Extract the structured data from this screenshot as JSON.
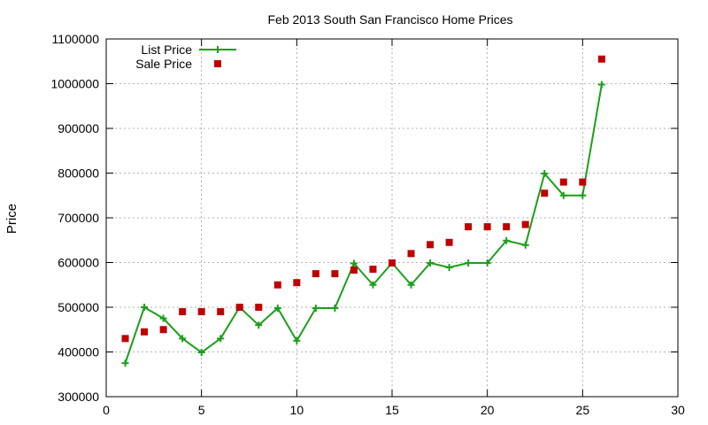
{
  "chart_data": {
    "type": "line",
    "title": "Feb 2013 South San Francisco Home Prices",
    "xlabel": "",
    "ylabel": "Price",
    "xlim": [
      0,
      30
    ],
    "ylim": [
      300000,
      1100000
    ],
    "x_ticks": [
      0,
      5,
      10,
      15,
      20,
      25,
      30
    ],
    "y_ticks": [
      300000,
      400000,
      500000,
      600000,
      700000,
      800000,
      900000,
      1000000,
      1100000
    ],
    "grid": true,
    "legend_position": "top-left",
    "x": [
      1,
      2,
      3,
      4,
      5,
      6,
      7,
      8,
      9,
      10,
      11,
      12,
      13,
      14,
      15,
      16,
      17,
      18,
      19,
      20,
      21,
      22,
      23,
      24,
      25,
      26
    ],
    "series": [
      {
        "name": "List Price",
        "style": "line-plus",
        "color": "#1aa01a",
        "values": [
          375000,
          500000,
          475000,
          430000,
          399000,
          430000,
          500000,
          460000,
          498000,
          425000,
          498000,
          498000,
          598000,
          550000,
          599000,
          550000,
          599000,
          589000,
          599000,
          599000,
          649000,
          639000,
          799000,
          750000,
          750000,
          998000
        ]
      },
      {
        "name": "Sale Price",
        "style": "square-markers",
        "color": "#c00000",
        "values": [
          430000,
          445000,
          450000,
          490000,
          490000,
          490000,
          500000,
          500000,
          550000,
          555000,
          575000,
          575000,
          583000,
          585000,
          599000,
          620000,
          640000,
          645000,
          680000,
          680000,
          680000,
          685000,
          755000,
          780000,
          780000,
          1055000
        ]
      }
    ]
  }
}
